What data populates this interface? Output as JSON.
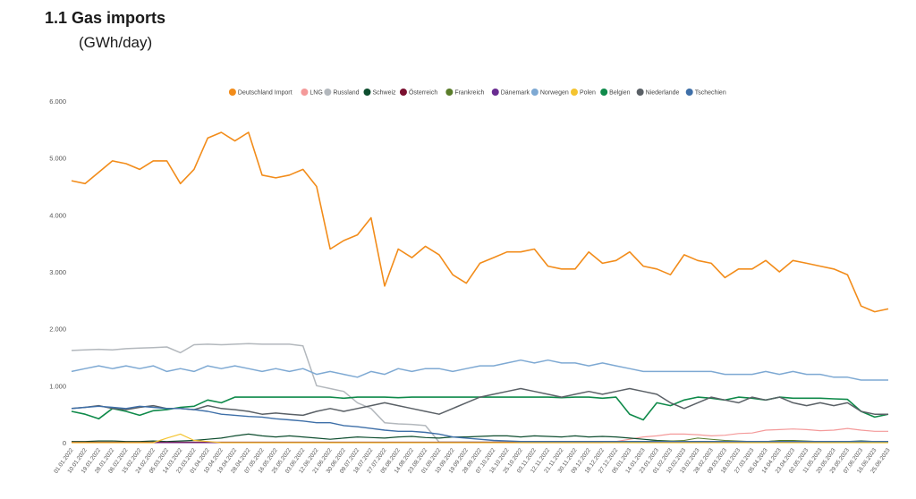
{
  "header": {
    "title": "1.1 Gas imports",
    "subtitle": "(GWh/day)"
  },
  "chart_data": {
    "type": "line",
    "title": "1.1 Gas imports",
    "ylabel": "GWh/day",
    "ylim": [
      0,
      6000
    ],
    "y_ticks": [
      "0",
      "1.000",
      "2.000",
      "3.000",
      "4.000",
      "5.000",
      "6.000"
    ],
    "y_tick_values": [
      0,
      1000,
      2000,
      3000,
      4000,
      5000,
      6000
    ],
    "legend_position": "top",
    "x_tick_labels": [
      "01.01.2022",
      "10.01.2022",
      "19.01.2022",
      "28.01.2022",
      "06.02.2022",
      "15.02.2022",
      "24.02.2022",
      "05.03.2022",
      "14.03.2022",
      "23.03.2022",
      "01.04.2022",
      "10.04.2022",
      "19.04.2022",
      "28.04.2022",
      "07.05.2022",
      "16.05.2022",
      "25.05.2022",
      "03.06.2022",
      "12.06.2022",
      "21.06.2022",
      "30.06.2022",
      "09.07.2022",
      "18.07.2022",
      "27.07.2022",
      "05.08.2022",
      "14.08.2022",
      "23.08.2022",
      "01.09.2022",
      "10.09.2022",
      "19.09.2022",
      "28.09.2022",
      "07.10.2022",
      "16.10.2022",
      "25.10.2022",
      "03.11.2022",
      "12.11.2022",
      "21.11.2022",
      "30.11.2022",
      "09.12.2022",
      "18.12.2022",
      "27.12.2022",
      "05.01.2023",
      "14.01.2023",
      "23.01.2023",
      "01.02.2023",
      "10.02.2023",
      "19.02.2023",
      "28.02.2023",
      "09.03.2023",
      "18.03.2023",
      "27.03.2023",
      "05.04.2023",
      "14.04.2023",
      "23.04.2023",
      "02.05.2023",
      "11.05.2023",
      "20.05.2023",
      "29.05.2023",
      "07.06.2023",
      "16.06.2023",
      "25.06.2023"
    ],
    "series": [
      {
        "name": "Deutschland Import",
        "color": "#f28c1a",
        "width": 1.6,
        "values": [
          4600,
          4550,
          4750,
          4950,
          4900,
          4800,
          4950,
          4950,
          4550,
          4800,
          5350,
          5450,
          5300,
          5450,
          4700,
          4650,
          4700,
          4800,
          4500,
          3400,
          3550,
          3650,
          3950,
          2750,
          3400,
          3250,
          3450,
          3300,
          2950,
          2800,
          3150,
          3250,
          3350,
          3350,
          3400,
          3100,
          3050,
          3050,
          3350,
          3150,
          3200,
          3350,
          3100,
          3050,
          2950,
          3300,
          3200,
          3150,
          2900,
          3050,
          3050,
          3200,
          3000,
          3200,
          3150,
          3100,
          3050,
          2950,
          2400,
          2300,
          2350
        ]
      },
      {
        "name": "LNG",
        "color": "#f49a9a",
        "width": 1.2,
        "values": [
          0,
          0,
          0,
          0,
          0,
          0,
          0,
          0,
          0,
          0,
          0,
          0,
          0,
          0,
          0,
          0,
          0,
          0,
          0,
          0,
          0,
          0,
          0,
          0,
          0,
          0,
          0,
          0,
          0,
          0,
          0,
          0,
          0,
          0,
          0,
          0,
          0,
          0,
          0,
          0,
          20,
          60,
          100,
          120,
          150,
          150,
          140,
          120,
          130,
          160,
          170,
          220,
          230,
          240,
          230,
          210,
          220,
          250,
          220,
          200,
          200
        ]
      },
      {
        "name": "Russland",
        "color": "#b3b8bd",
        "width": 1.5,
        "values": [
          1620,
          1630,
          1640,
          1630,
          1650,
          1660,
          1670,
          1680,
          1580,
          1720,
          1730,
          1720,
          1730,
          1740,
          1730,
          1730,
          1730,
          1700,
          1000,
          950,
          900,
          700,
          600,
          350,
          330,
          320,
          300,
          10,
          10,
          10,
          10,
          10,
          10,
          10,
          10,
          10,
          10,
          10,
          10,
          10,
          10,
          10,
          10,
          10,
          10,
          10,
          10,
          10,
          10,
          10,
          10,
          10,
          10,
          10,
          10,
          10,
          10,
          10,
          10,
          10,
          10
        ]
      },
      {
        "name": "Schweiz",
        "color": "#0d4d2e",
        "width": 1.2,
        "values": [
          20,
          20,
          30,
          30,
          20,
          20,
          30,
          20,
          30,
          40,
          60,
          80,
          120,
          150,
          120,
          100,
          120,
          100,
          80,
          60,
          80,
          100,
          90,
          80,
          100,
          110,
          90,
          80,
          100,
          100,
          110,
          120,
          120,
          100,
          120,
          110,
          100,
          120,
          100,
          110,
          100,
          80,
          60,
          40,
          30,
          20,
          20,
          20,
          20,
          20,
          20,
          20,
          30,
          20,
          20,
          20,
          20,
          20,
          30,
          20,
          20
        ]
      },
      {
        "name": "Österreich",
        "color": "#7a1030",
        "width": 1.0,
        "values": [
          10,
          10,
          10,
          10,
          10,
          10,
          10,
          10,
          10,
          10,
          10,
          10,
          10,
          10,
          10,
          10,
          10,
          10,
          10,
          10,
          10,
          10,
          10,
          10,
          10,
          10,
          10,
          10,
          10,
          10,
          10,
          10,
          10,
          10,
          10,
          10,
          10,
          10,
          10,
          10,
          10,
          10,
          10,
          10,
          10,
          10,
          10,
          10,
          10,
          10,
          10,
          10,
          10,
          10,
          10,
          10,
          10,
          10,
          10,
          10,
          10
        ]
      },
      {
        "name": "Frankreich",
        "color": "#5a7d2a",
        "width": 1.0,
        "values": [
          0,
          0,
          0,
          0,
          0,
          0,
          0,
          0,
          0,
          0,
          0,
          0,
          0,
          0,
          0,
          0,
          0,
          0,
          0,
          0,
          0,
          0,
          0,
          0,
          0,
          0,
          0,
          0,
          0,
          0,
          0,
          0,
          0,
          0,
          0,
          0,
          0,
          0,
          0,
          0,
          0,
          10,
          20,
          30,
          30,
          40,
          80,
          60,
          40,
          30,
          20,
          20,
          40,
          40,
          30,
          20,
          20,
          10,
          10,
          10,
          10
        ]
      },
      {
        "name": "Dänemark",
        "color": "#6a2c91",
        "width": 1.0,
        "values": [
          0,
          0,
          0,
          0,
          0,
          0,
          0,
          0,
          0,
          0,
          0,
          0,
          0,
          0,
          0,
          0,
          0,
          0,
          0,
          0,
          0,
          0,
          0,
          0,
          0,
          0,
          0,
          0,
          0,
          0,
          0,
          0,
          0,
          0,
          0,
          0,
          0,
          0,
          0,
          0,
          0,
          0,
          0,
          0,
          0,
          0,
          0,
          0,
          0,
          0,
          0,
          0,
          0,
          0,
          0,
          0,
          0,
          0,
          0,
          0,
          0
        ]
      },
      {
        "name": "Norwegen",
        "color": "#7ea9d3",
        "width": 1.5,
        "values": [
          1250,
          1300,
          1350,
          1300,
          1350,
          1300,
          1350,
          1250,
          1300,
          1250,
          1350,
          1300,
          1350,
          1300,
          1250,
          1300,
          1250,
          1300,
          1200,
          1250,
          1200,
          1150,
          1250,
          1200,
          1300,
          1250,
          1300,
          1300,
          1250,
          1300,
          1350,
          1350,
          1400,
          1450,
          1400,
          1450,
          1400,
          1400,
          1350,
          1400,
          1350,
          1300,
          1250,
          1250,
          1250,
          1250,
          1250,
          1250,
          1200,
          1200,
          1200,
          1250,
          1200,
          1250,
          1200,
          1200,
          1150,
          1150,
          1100,
          1100,
          1100
        ]
      },
      {
        "name": "Polen",
        "color": "#f4c430",
        "width": 1.2,
        "values": [
          0,
          0,
          0,
          0,
          0,
          0,
          0,
          80,
          150,
          40,
          20,
          0,
          0,
          0,
          0,
          0,
          0,
          0,
          0,
          0,
          0,
          0,
          0,
          0,
          0,
          0,
          0,
          0,
          0,
          0,
          0,
          0,
          0,
          0,
          0,
          0,
          0,
          0,
          0,
          0,
          0,
          0,
          0,
          0,
          0,
          0,
          0,
          0,
          0,
          0,
          0,
          0,
          0,
          0,
          0,
          0,
          0,
          0,
          0,
          0,
          0
        ]
      },
      {
        "name": "Belgien",
        "color": "#0f8a4a",
        "width": 1.6,
        "values": [
          550,
          500,
          420,
          600,
          550,
          480,
          560,
          580,
          620,
          640,
          750,
          700,
          800,
          800,
          800,
          800,
          800,
          800,
          800,
          800,
          780,
          800,
          800,
          800,
          790,
          800,
          800,
          800,
          800,
          800,
          800,
          800,
          800,
          800,
          800,
          800,
          790,
          800,
          800,
          780,
          800,
          500,
          400,
          700,
          650,
          750,
          800,
          780,
          750,
          800,
          780,
          750,
          800,
          780,
          780,
          780,
          770,
          760,
          550,
          450,
          500
        ]
      },
      {
        "name": "Niederlande",
        "color": "#5a6066",
        "width": 1.5,
        "values": [
          600,
          620,
          650,
          600,
          580,
          620,
          650,
          600,
          600,
          580,
          650,
          600,
          580,
          550,
          500,
          520,
          500,
          480,
          550,
          600,
          550,
          600,
          650,
          700,
          650,
          600,
          550,
          500,
          600,
          700,
          800,
          850,
          900,
          950,
          900,
          850,
          800,
          850,
          900,
          850,
          900,
          950,
          900,
          850,
          700,
          600,
          700,
          800,
          750,
          700,
          800,
          750,
          800,
          700,
          650,
          700,
          650,
          700,
          550,
          500,
          500
        ]
      },
      {
        "name": "Tschechien",
        "color": "#3e6fa8",
        "width": 1.4,
        "values": [
          600,
          620,
          640,
          620,
          600,
          640,
          620,
          600,
          600,
          580,
          550,
          500,
          480,
          460,
          450,
          420,
          400,
          380,
          350,
          350,
          300,
          280,
          250,
          220,
          200,
          200,
          180,
          150,
          100,
          80,
          60,
          40,
          30,
          20,
          20,
          20,
          20,
          20,
          20,
          20,
          20,
          20,
          20,
          20,
          20,
          20,
          20,
          20,
          20,
          20,
          20,
          20,
          20,
          20,
          20,
          20,
          20,
          20,
          20,
          20,
          20
        ]
      }
    ]
  }
}
